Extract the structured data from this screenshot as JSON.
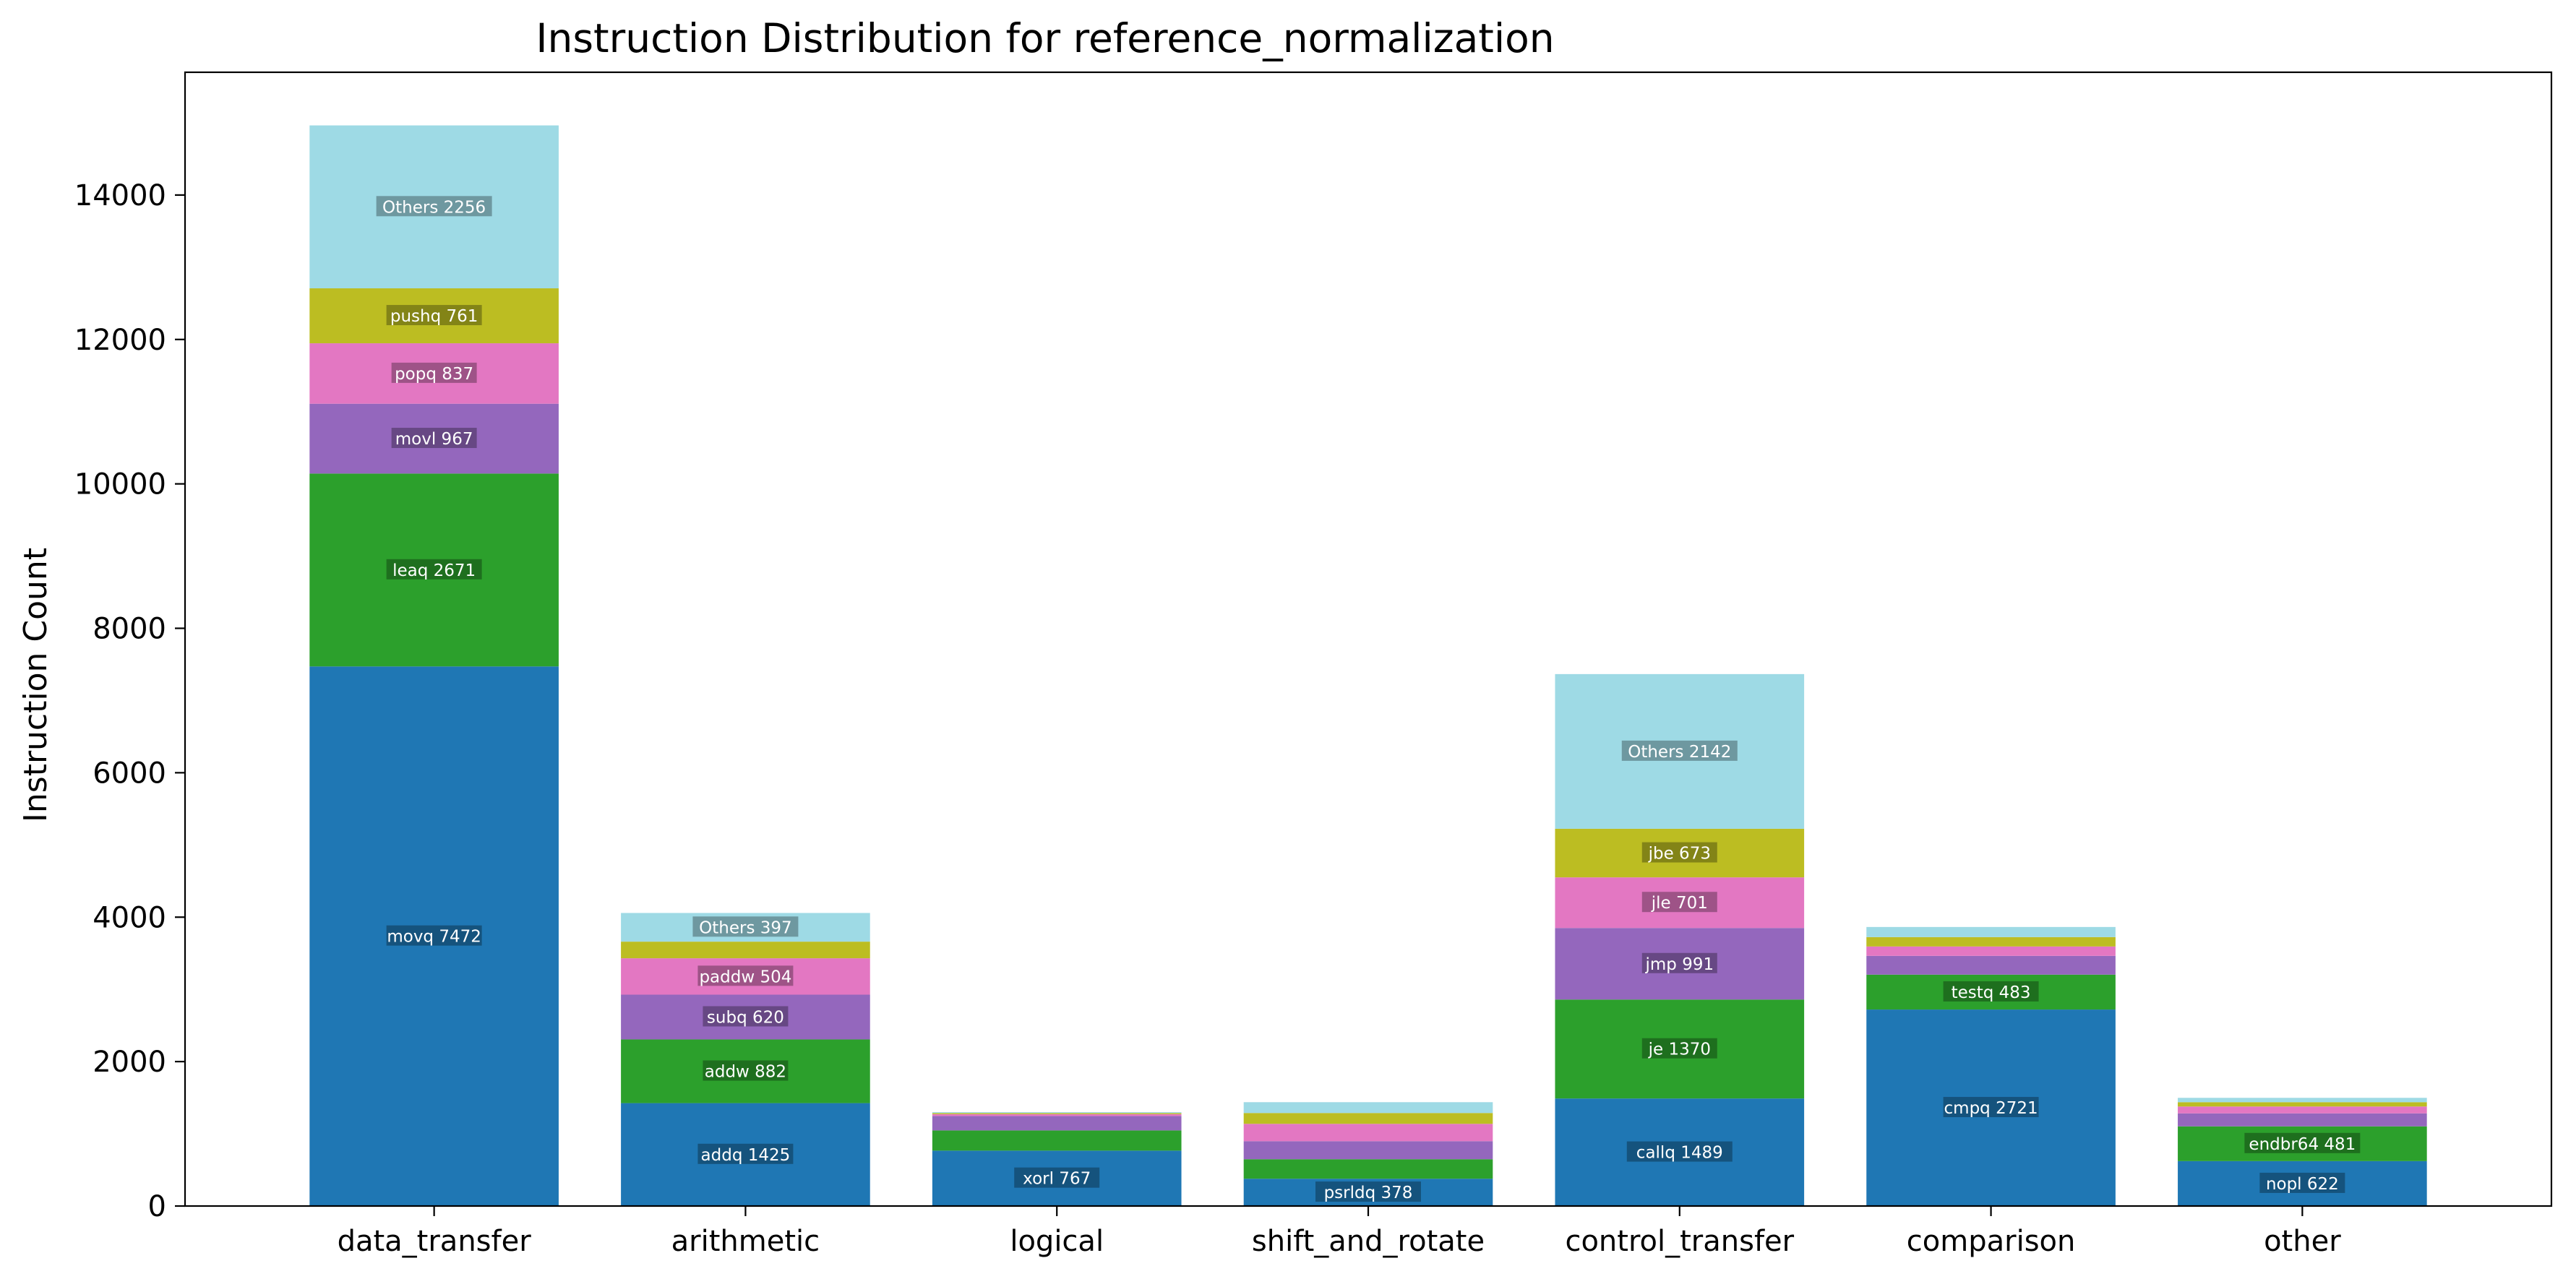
{
  "chart_data": {
    "type": "bar",
    "stacked": true,
    "title": "Instruction Distribution for reference_normalization",
    "xlabel": "",
    "ylabel": "Instruction Count",
    "ylim": [
      0,
      15700
    ],
    "yticks": [
      0,
      2000,
      4000,
      6000,
      8000,
      10000,
      12000,
      14000
    ],
    "grid": false,
    "layer_colors": [
      "#1f77b4",
      "#2ca02c",
      "#9467bd",
      "#e377c2",
      "#bcbd22",
      "#9edae5"
    ],
    "categories": [
      "data_transfer",
      "arithmetic",
      "logical",
      "shift_and_rotate",
      "control_transfer",
      "comparison",
      "other"
    ],
    "stacks": [
      {
        "category": "data_transfer",
        "segments": [
          {
            "label": "movq",
            "value": 7472
          },
          {
            "label": "leaq",
            "value": 2671
          },
          {
            "label": "movl",
            "value": 967
          },
          {
            "label": "popq",
            "value": 837
          },
          {
            "label": "pushq",
            "value": 761
          },
          {
            "label": "Others",
            "value": 2256
          }
        ]
      },
      {
        "category": "arithmetic",
        "segments": [
          {
            "label": "addq",
            "value": 1425
          },
          {
            "label": "addw",
            "value": 882
          },
          {
            "label": "subq",
            "value": 620
          },
          {
            "label": "paddw",
            "value": 504
          },
          {
            "label": "",
            "value": 230
          },
          {
            "label": "Others",
            "value": 397
          }
        ]
      },
      {
        "category": "logical",
        "segments": [
          {
            "label": "xorl",
            "value": 767
          },
          {
            "label": "",
            "value": 280
          },
          {
            "label": "",
            "value": 200
          },
          {
            "label": "",
            "value": 25
          },
          {
            "label": "",
            "value": 15
          },
          {
            "label": "",
            "value": 13
          }
        ]
      },
      {
        "category": "shift_and_rotate",
        "segments": [
          {
            "label": "psrldq",
            "value": 378
          },
          {
            "label": "",
            "value": 270
          },
          {
            "label": "",
            "value": 250
          },
          {
            "label": "",
            "value": 240
          },
          {
            "label": "",
            "value": 150
          },
          {
            "label": "",
            "value": 150
          }
        ]
      },
      {
        "category": "control_transfer",
        "segments": [
          {
            "label": "callq",
            "value": 1489
          },
          {
            "label": "je",
            "value": 1370
          },
          {
            "label": "jmp",
            "value": 991
          },
          {
            "label": "jle",
            "value": 701
          },
          {
            "label": "jbe",
            "value": 673
          },
          {
            "label": "Others",
            "value": 2142
          }
        ]
      },
      {
        "category": "comparison",
        "segments": [
          {
            "label": "cmpq",
            "value": 2721
          },
          {
            "label": "testq",
            "value": 483
          },
          {
            "label": "",
            "value": 260
          },
          {
            "label": "",
            "value": 130
          },
          {
            "label": "",
            "value": 130
          },
          {
            "label": "",
            "value": 140
          }
        ]
      },
      {
        "category": "other",
        "segments": [
          {
            "label": "nopl",
            "value": 622
          },
          {
            "label": "endbr64",
            "value": 481
          },
          {
            "label": "",
            "value": 180
          },
          {
            "label": "",
            "value": 95
          },
          {
            "label": "",
            "value": 60
          },
          {
            "label": "",
            "value": 60
          }
        ]
      }
    ]
  }
}
